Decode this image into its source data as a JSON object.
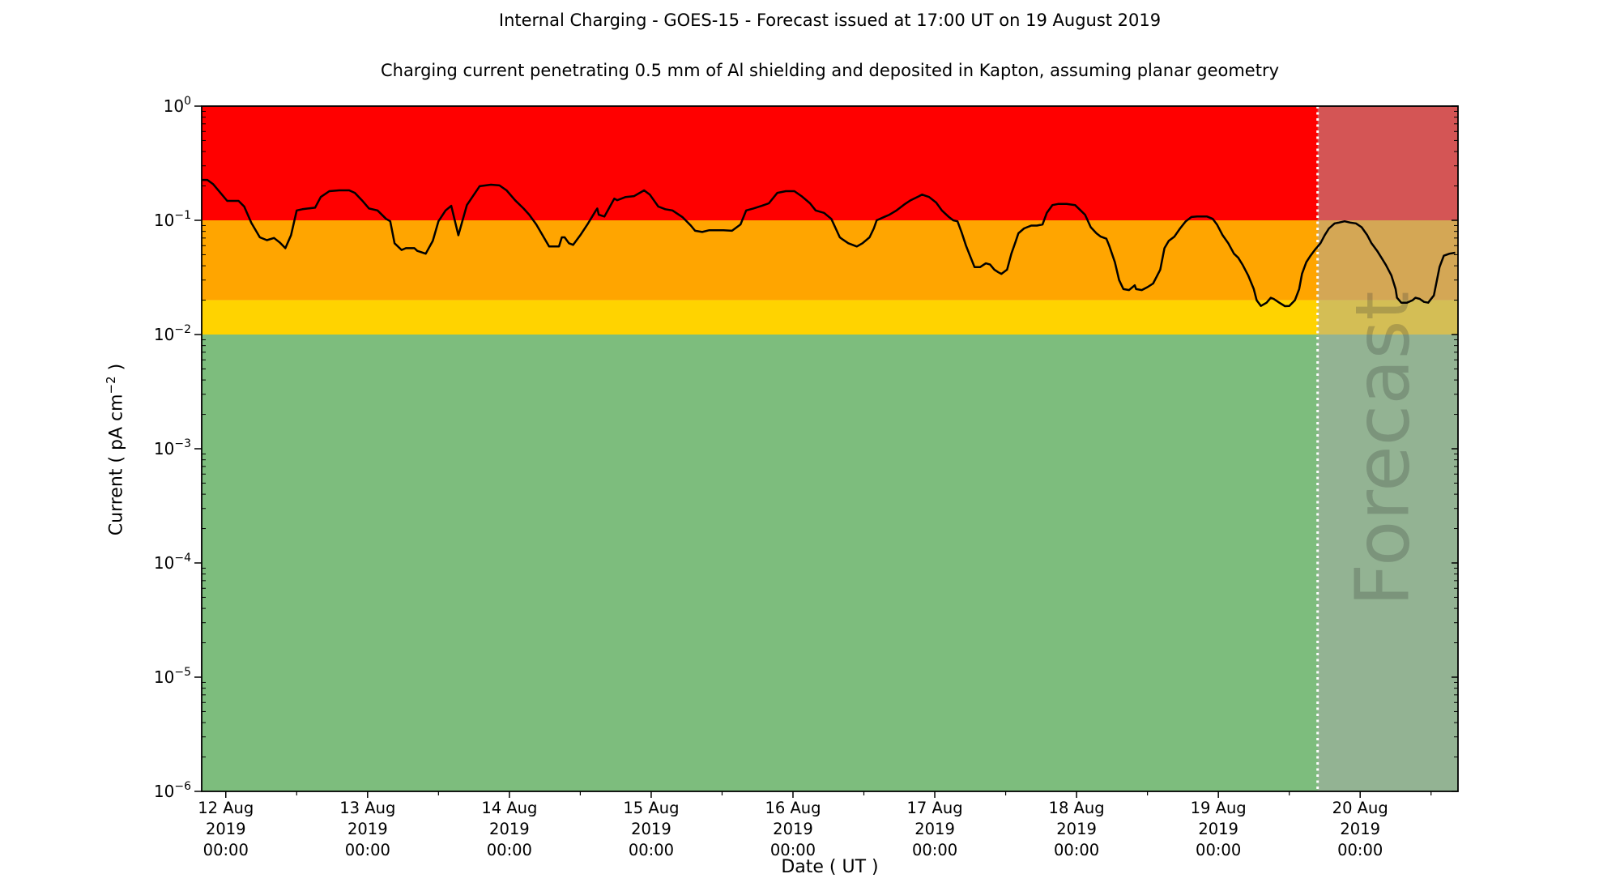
{
  "header": {
    "title": "Internal Charging - GOES-15 - Forecast issued at 17:00 UT on 19 August 2019",
    "subtitle": "Charging current penetrating 0.5 mm of Al shielding and deposited in Kapton, assuming planar geometry"
  },
  "chart_data": {
    "type": "line",
    "title": "Internal Charging - GOES-15 - Forecast issued at 17:00 UT on 19 August 2019",
    "subtitle": "Charging current penetrating 0.5 mm of Al shielding and deposited in Kapton, assuming planar geometry",
    "x_axis": {
      "label": "Date ( UT )",
      "start_day": -0.17,
      "end_day": 8.69,
      "ticks": [
        {
          "day": 0,
          "lines": [
            "12 Aug",
            "2019",
            "00:00"
          ]
        },
        {
          "day": 1,
          "lines": [
            "13 Aug",
            "2019",
            "00:00"
          ]
        },
        {
          "day": 2,
          "lines": [
            "14 Aug",
            "2019",
            "00:00"
          ]
        },
        {
          "day": 3,
          "lines": [
            "15 Aug",
            "2019",
            "00:00"
          ]
        },
        {
          "day": 4,
          "lines": [
            "16 Aug",
            "2019",
            "00:00"
          ]
        },
        {
          "day": 5,
          "lines": [
            "17 Aug",
            "2019",
            "00:00"
          ]
        },
        {
          "day": 6,
          "lines": [
            "18 Aug",
            "2019",
            "00:00"
          ]
        },
        {
          "day": 7,
          "lines": [
            "19 Aug",
            "2019",
            "00:00"
          ]
        },
        {
          "day": 8,
          "lines": [
            "20 Aug",
            "2019",
            "00:00"
          ]
        }
      ],
      "minor_days": [
        0.5,
        1.5,
        2.5,
        3.5,
        4.5,
        5.5,
        6.5,
        7.5,
        8.5
      ]
    },
    "y_axis": {
      "scale": "log",
      "exponent_max": 0,
      "exponent_min": -6,
      "major_exponents": [
        0,
        -1,
        -2,
        -3,
        -4,
        -5,
        -6
      ],
      "label_prefix": "Current ( pA cm",
      "label_sup": "−2",
      "label_suffix": " )"
    },
    "bands": [
      {
        "name": "red",
        "value_from": 0.1,
        "value_to": 1.0,
        "color": "#ff0000"
      },
      {
        "name": "orange",
        "value_from": 0.02,
        "value_to": 0.1,
        "color": "#ffa500"
      },
      {
        "name": "yellow",
        "value_from": 0.01,
        "value_to": 0.02,
        "color": "#ffd300"
      },
      {
        "name": "green",
        "value_from": 1e-06,
        "value_to": 0.01,
        "color": "#7dbd7d"
      }
    ],
    "forecast": {
      "label": "Forecast",
      "start_day": 7.7,
      "overlay_color": "rgba(170,170,170,0.5)",
      "divider_color": "#ffffff",
      "label_color": "rgba(50,50,50,0.24)"
    },
    "series": [
      {
        "name": "charging_current",
        "color": "#000000",
        "width": 2.5,
        "points": [
          [
            -0.17,
            0.226
          ],
          [
            -0.13,
            0.226
          ],
          [
            -0.09,
            0.208
          ],
          [
            0.01,
            0.148
          ],
          [
            0.09,
            0.148
          ],
          [
            0.13,
            0.132
          ],
          [
            0.18,
            0.095
          ],
          [
            0.24,
            0.071
          ],
          [
            0.29,
            0.067
          ],
          [
            0.34,
            0.07
          ],
          [
            0.38,
            0.064
          ],
          [
            0.42,
            0.057
          ],
          [
            0.46,
            0.074
          ],
          [
            0.5,
            0.122
          ],
          [
            0.54,
            0.125
          ],
          [
            0.58,
            0.127
          ],
          [
            0.63,
            0.129
          ],
          [
            0.67,
            0.16
          ],
          [
            0.73,
            0.18
          ],
          [
            0.8,
            0.183
          ],
          [
            0.87,
            0.183
          ],
          [
            0.91,
            0.174
          ],
          [
            0.96,
            0.15
          ],
          [
            1.01,
            0.127
          ],
          [
            1.07,
            0.122
          ],
          [
            1.13,
            0.103
          ],
          [
            1.16,
            0.098
          ],
          [
            1.19,
            0.063
          ],
          [
            1.24,
            0.055
          ],
          [
            1.27,
            0.057
          ],
          [
            1.33,
            0.057
          ],
          [
            1.35,
            0.054
          ],
          [
            1.41,
            0.051
          ],
          [
            1.46,
            0.066
          ],
          [
            1.5,
            0.098
          ],
          [
            1.55,
            0.122
          ],
          [
            1.59,
            0.134
          ],
          [
            1.64,
            0.074
          ],
          [
            1.7,
            0.136
          ],
          [
            1.79,
            0.199
          ],
          [
            1.87,
            0.205
          ],
          [
            1.93,
            0.202
          ],
          [
            1.98,
            0.183
          ],
          [
            2.04,
            0.15
          ],
          [
            2.1,
            0.127
          ],
          [
            2.14,
            0.112
          ],
          [
            2.19,
            0.092
          ],
          [
            2.28,
            0.059
          ],
          [
            2.35,
            0.059
          ],
          [
            2.37,
            0.071
          ],
          [
            2.39,
            0.071
          ],
          [
            2.42,
            0.063
          ],
          [
            2.45,
            0.061
          ],
          [
            2.5,
            0.074
          ],
          [
            2.55,
            0.092
          ],
          [
            2.61,
            0.122
          ],
          [
            2.62,
            0.127
          ],
          [
            2.63,
            0.112
          ],
          [
            2.67,
            0.108
          ],
          [
            2.74,
            0.155
          ],
          [
            2.76,
            0.15
          ],
          [
            2.82,
            0.16
          ],
          [
            2.88,
            0.163
          ],
          [
            2.95,
            0.183
          ],
          [
            2.99,
            0.168
          ],
          [
            3.05,
            0.132
          ],
          [
            3.1,
            0.125
          ],
          [
            3.15,
            0.122
          ],
          [
            3.22,
            0.107
          ],
          [
            3.28,
            0.09
          ],
          [
            3.31,
            0.081
          ],
          [
            3.36,
            0.079
          ],
          [
            3.41,
            0.082
          ],
          [
            3.47,
            0.082
          ],
          [
            3.51,
            0.082
          ],
          [
            3.57,
            0.081
          ],
          [
            3.63,
            0.092
          ],
          [
            3.67,
            0.122
          ],
          [
            3.72,
            0.127
          ],
          [
            3.78,
            0.134
          ],
          [
            3.83,
            0.141
          ],
          [
            3.89,
            0.174
          ],
          [
            3.95,
            0.18
          ],
          [
            4.01,
            0.18
          ],
          [
            4.06,
            0.163
          ],
          [
            4.12,
            0.141
          ],
          [
            4.16,
            0.122
          ],
          [
            4.22,
            0.116
          ],
          [
            4.27,
            0.103
          ],
          [
            4.33,
            0.071
          ],
          [
            4.35,
            0.068
          ],
          [
            4.39,
            0.063
          ],
          [
            4.45,
            0.059
          ],
          [
            4.49,
            0.063
          ],
          [
            4.54,
            0.071
          ],
          [
            4.57,
            0.085
          ],
          [
            4.59,
            0.1
          ],
          [
            4.65,
            0.108
          ],
          [
            4.68,
            0.112
          ],
          [
            4.73,
            0.122
          ],
          [
            4.79,
            0.139
          ],
          [
            4.83,
            0.15
          ],
          [
            4.89,
            0.163
          ],
          [
            4.91,
            0.168
          ],
          [
            4.96,
            0.16
          ],
          [
            5.01,
            0.143
          ],
          [
            5.05,
            0.122
          ],
          [
            5.1,
            0.107
          ],
          [
            5.13,
            0.1
          ],
          [
            5.16,
            0.098
          ],
          [
            5.19,
            0.078
          ],
          [
            5.22,
            0.06
          ],
          [
            5.26,
            0.045
          ],
          [
            5.28,
            0.039
          ],
          [
            5.32,
            0.039
          ],
          [
            5.36,
            0.042
          ],
          [
            5.39,
            0.041
          ],
          [
            5.42,
            0.037
          ],
          [
            5.45,
            0.035
          ],
          [
            5.47,
            0.034
          ],
          [
            5.51,
            0.037
          ],
          [
            5.54,
            0.051
          ],
          [
            5.57,
            0.065
          ],
          [
            5.59,
            0.077
          ],
          [
            5.63,
            0.085
          ],
          [
            5.68,
            0.09
          ],
          [
            5.72,
            0.09
          ],
          [
            5.76,
            0.092
          ],
          [
            5.79,
            0.116
          ],
          [
            5.83,
            0.136
          ],
          [
            5.87,
            0.139
          ],
          [
            5.93,
            0.139
          ],
          [
            5.99,
            0.136
          ],
          [
            6.02,
            0.125
          ],
          [
            6.06,
            0.112
          ],
          [
            6.1,
            0.087
          ],
          [
            6.14,
            0.077
          ],
          [
            6.17,
            0.072
          ],
          [
            6.21,
            0.069
          ],
          [
            6.23,
            0.06
          ],
          [
            6.27,
            0.043
          ],
          [
            6.3,
            0.03
          ],
          [
            6.33,
            0.025
          ],
          [
            6.37,
            0.0245
          ],
          [
            6.41,
            0.027
          ],
          [
            6.42,
            0.025
          ],
          [
            6.46,
            0.0245
          ],
          [
            6.5,
            0.026
          ],
          [
            6.54,
            0.028
          ],
          [
            6.59,
            0.037
          ],
          [
            6.62,
            0.057
          ],
          [
            6.65,
            0.066
          ],
          [
            6.69,
            0.072
          ],
          [
            6.73,
            0.085
          ],
          [
            6.77,
            0.098
          ],
          [
            6.81,
            0.107
          ],
          [
            6.85,
            0.108
          ],
          [
            6.88,
            0.108
          ],
          [
            6.92,
            0.108
          ],
          [
            6.96,
            0.103
          ],
          [
            6.99,
            0.092
          ],
          [
            7.03,
            0.074
          ],
          [
            7.07,
            0.063
          ],
          [
            7.11,
            0.051
          ],
          [
            7.14,
            0.047
          ],
          [
            7.17,
            0.041
          ],
          [
            7.21,
            0.033
          ],
          [
            7.25,
            0.025
          ],
          [
            7.27,
            0.02
          ],
          [
            7.3,
            0.0178
          ],
          [
            7.34,
            0.019
          ],
          [
            7.37,
            0.021
          ],
          [
            7.39,
            0.0205
          ],
          [
            7.43,
            0.019
          ],
          [
            7.47,
            0.0177
          ],
          [
            7.5,
            0.0178
          ],
          [
            7.54,
            0.02
          ],
          [
            7.57,
            0.025
          ],
          [
            7.59,
            0.034
          ],
          [
            7.62,
            0.043
          ],
          [
            7.65,
            0.049
          ],
          [
            7.68,
            0.055
          ],
          [
            7.72,
            0.063
          ],
          [
            7.75,
            0.074
          ],
          [
            7.78,
            0.085
          ],
          [
            7.82,
            0.094
          ],
          [
            7.85,
            0.0955
          ],
          [
            7.89,
            0.098
          ],
          [
            7.93,
            0.0955
          ],
          [
            7.97,
            0.094
          ],
          [
            8.01,
            0.087
          ],
          [
            8.05,
            0.074
          ],
          [
            8.08,
            0.063
          ],
          [
            8.12,
            0.054
          ],
          [
            8.15,
            0.047
          ],
          [
            8.18,
            0.041
          ],
          [
            8.22,
            0.033
          ],
          [
            8.25,
            0.025
          ],
          [
            8.26,
            0.021
          ],
          [
            8.29,
            0.019
          ],
          [
            8.33,
            0.019
          ],
          [
            8.37,
            0.02
          ],
          [
            8.39,
            0.021
          ],
          [
            8.42,
            0.0205
          ],
          [
            8.45,
            0.0193
          ],
          [
            8.48,
            0.019
          ],
          [
            8.52,
            0.022
          ],
          [
            8.56,
            0.039
          ],
          [
            8.59,
            0.049
          ],
          [
            8.63,
            0.051
          ],
          [
            8.67,
            0.052
          ]
        ]
      }
    ]
  }
}
